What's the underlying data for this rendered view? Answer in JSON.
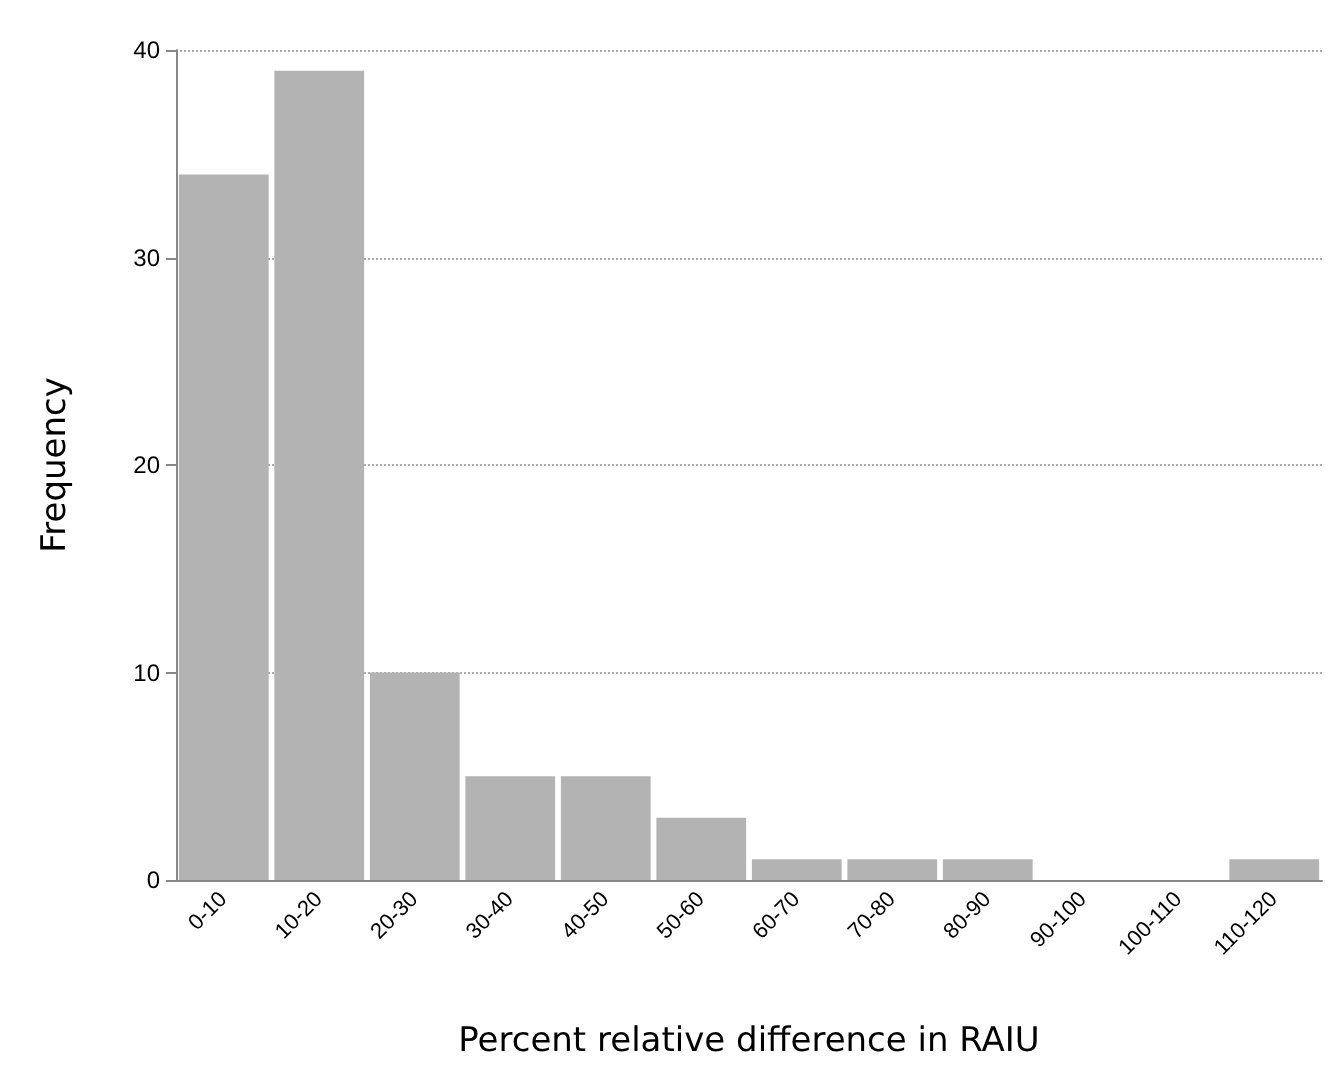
{
  "chart_data": {
    "type": "bar",
    "xlabel": "Percent relative difference in RAIU",
    "ylabel": "Frequency",
    "categories": [
      "0-10",
      "10-20",
      "20-30",
      "30-40",
      "40-50",
      "50-60",
      "60-70",
      "70-80",
      "80-90",
      "90-100",
      "100-110",
      "110-120"
    ],
    "values": [
      34,
      39,
      10,
      5,
      5,
      3,
      1,
      1,
      1,
      0,
      0,
      1
    ],
    "color": "#b3b3b3",
    "ylim": [
      0,
      40
    ],
    "yticks": [
      0,
      10,
      20,
      30,
      40
    ],
    "grid": "y"
  }
}
